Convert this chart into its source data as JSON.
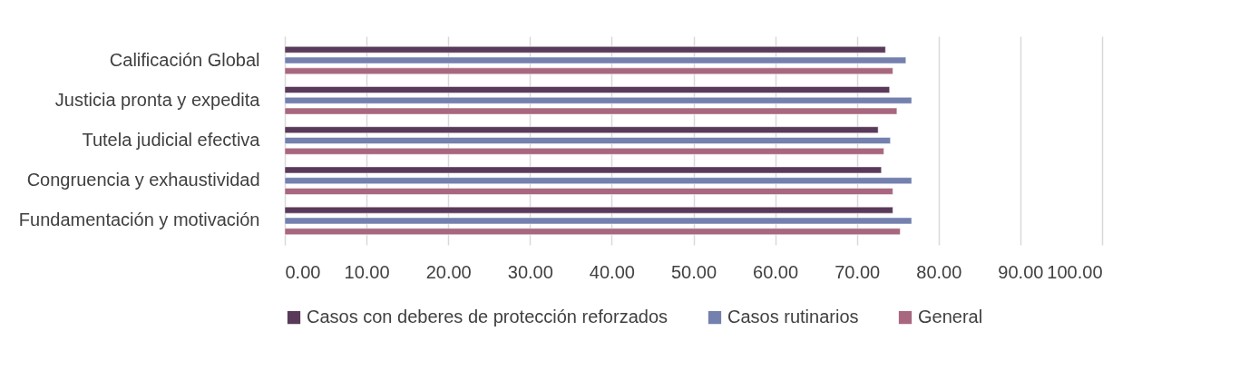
{
  "chart_data": {
    "type": "bar",
    "orientation": "horizontal",
    "categories": [
      "Calificación Global",
      "Justicia pronta y expedita",
      "Tutela judicial efectiva",
      "Congruencia y exhaustividad",
      "Fundamentación y motivación"
    ],
    "series": [
      {
        "name": "Casos con deberes de protección reforzados",
        "color": "#5a3a5a",
        "values": [
          73.5,
          74.0,
          72.6,
          73.0,
          74.4
        ]
      },
      {
        "name": "Casos rutinarios",
        "color": "#7480ae",
        "values": [
          76.0,
          76.7,
          74.1,
          76.7,
          76.7
        ]
      },
      {
        "name": "General",
        "color": "#a8677f",
        "values": [
          74.4,
          74.9,
          73.3,
          74.4,
          75.3
        ]
      }
    ],
    "xlim": [
      0,
      100
    ],
    "xticks": [
      {
        "value": 0,
        "label": "0.00"
      },
      {
        "value": 10,
        "label": "10.00"
      },
      {
        "value": 20,
        "label": "20.00"
      },
      {
        "value": 30,
        "label": "30.00"
      },
      {
        "value": 40,
        "label": "40.00"
      },
      {
        "value": 50,
        "label": "50.00"
      },
      {
        "value": 60,
        "label": "60.00"
      },
      {
        "value": 70,
        "label": "70.00"
      },
      {
        "value": 80,
        "label": "80.00"
      },
      {
        "value": 90,
        "label": "90.00"
      },
      {
        "value": 100,
        "label": "100.00"
      }
    ],
    "grid": "x",
    "legend": "bottom"
  }
}
